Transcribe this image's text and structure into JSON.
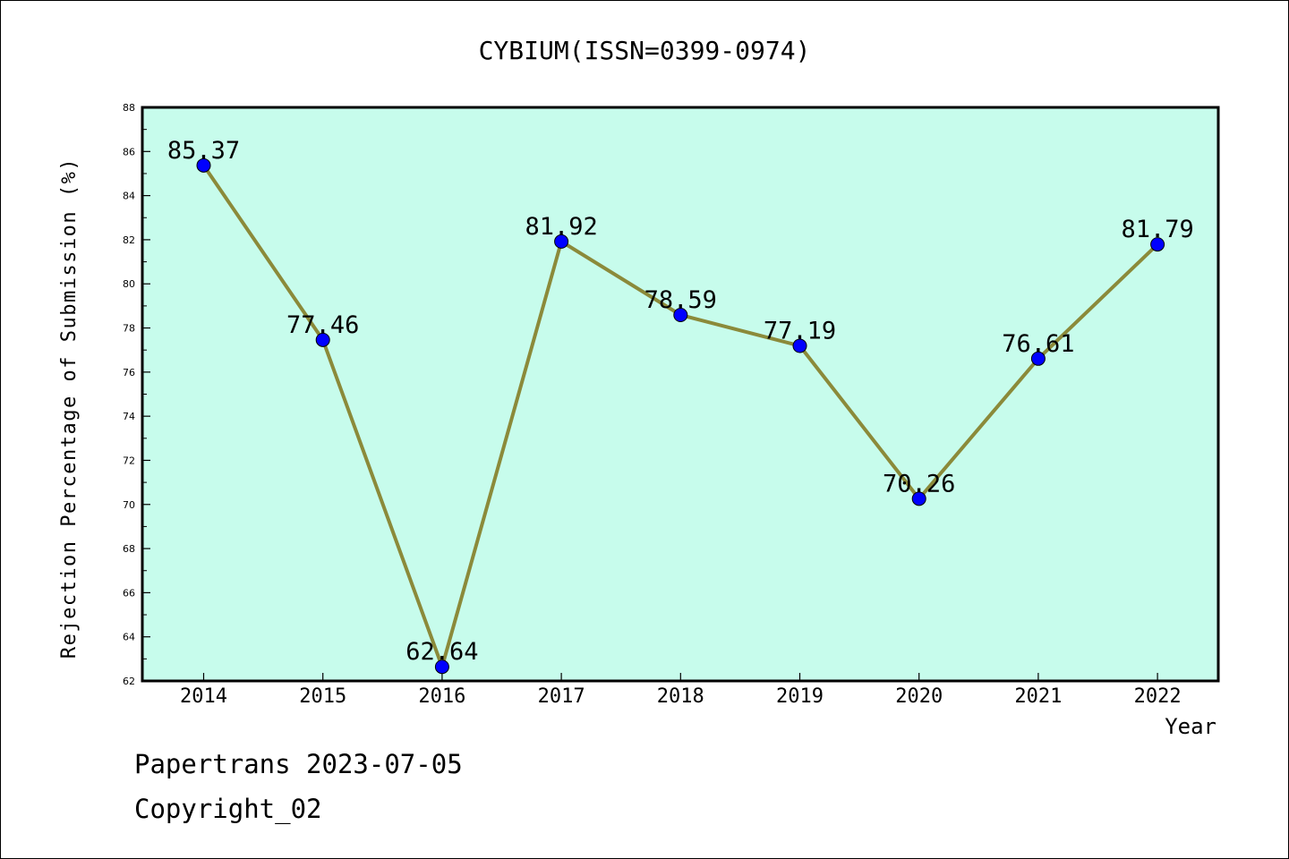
{
  "chart_data": {
    "type": "line",
    "title": "CYBIUM(ISSN=0399-0974)",
    "xlabel": "Year",
    "ylabel": "Rejection Percentage of Submission (%)",
    "categories": [
      "2014",
      "2015",
      "2016",
      "2017",
      "2018",
      "2019",
      "2020",
      "2021",
      "2022"
    ],
    "values": [
      85.37,
      77.46,
      62.64,
      81.92,
      78.59,
      77.19,
      70.26,
      76.61,
      81.79
    ],
    "data_labels": [
      "85.37",
      "77.46",
      "62.64",
      "81.92",
      "78.59",
      "77.19",
      "70.26",
      "76.61",
      "81.79"
    ],
    "ylim": [
      62,
      88
    ],
    "yticks": [
      "62",
      "64",
      "66",
      "68",
      "70",
      "72",
      "74",
      "76",
      "78",
      "80",
      "82",
      "84",
      "86",
      "88"
    ],
    "grid": false,
    "colors": {
      "plot_background": "#c7fcec",
      "line": "#8b8a3a",
      "marker": "#0000ff"
    }
  },
  "footer": {
    "line1": "Papertrans 2023-07-05",
    "line2": "Copyright_02"
  }
}
